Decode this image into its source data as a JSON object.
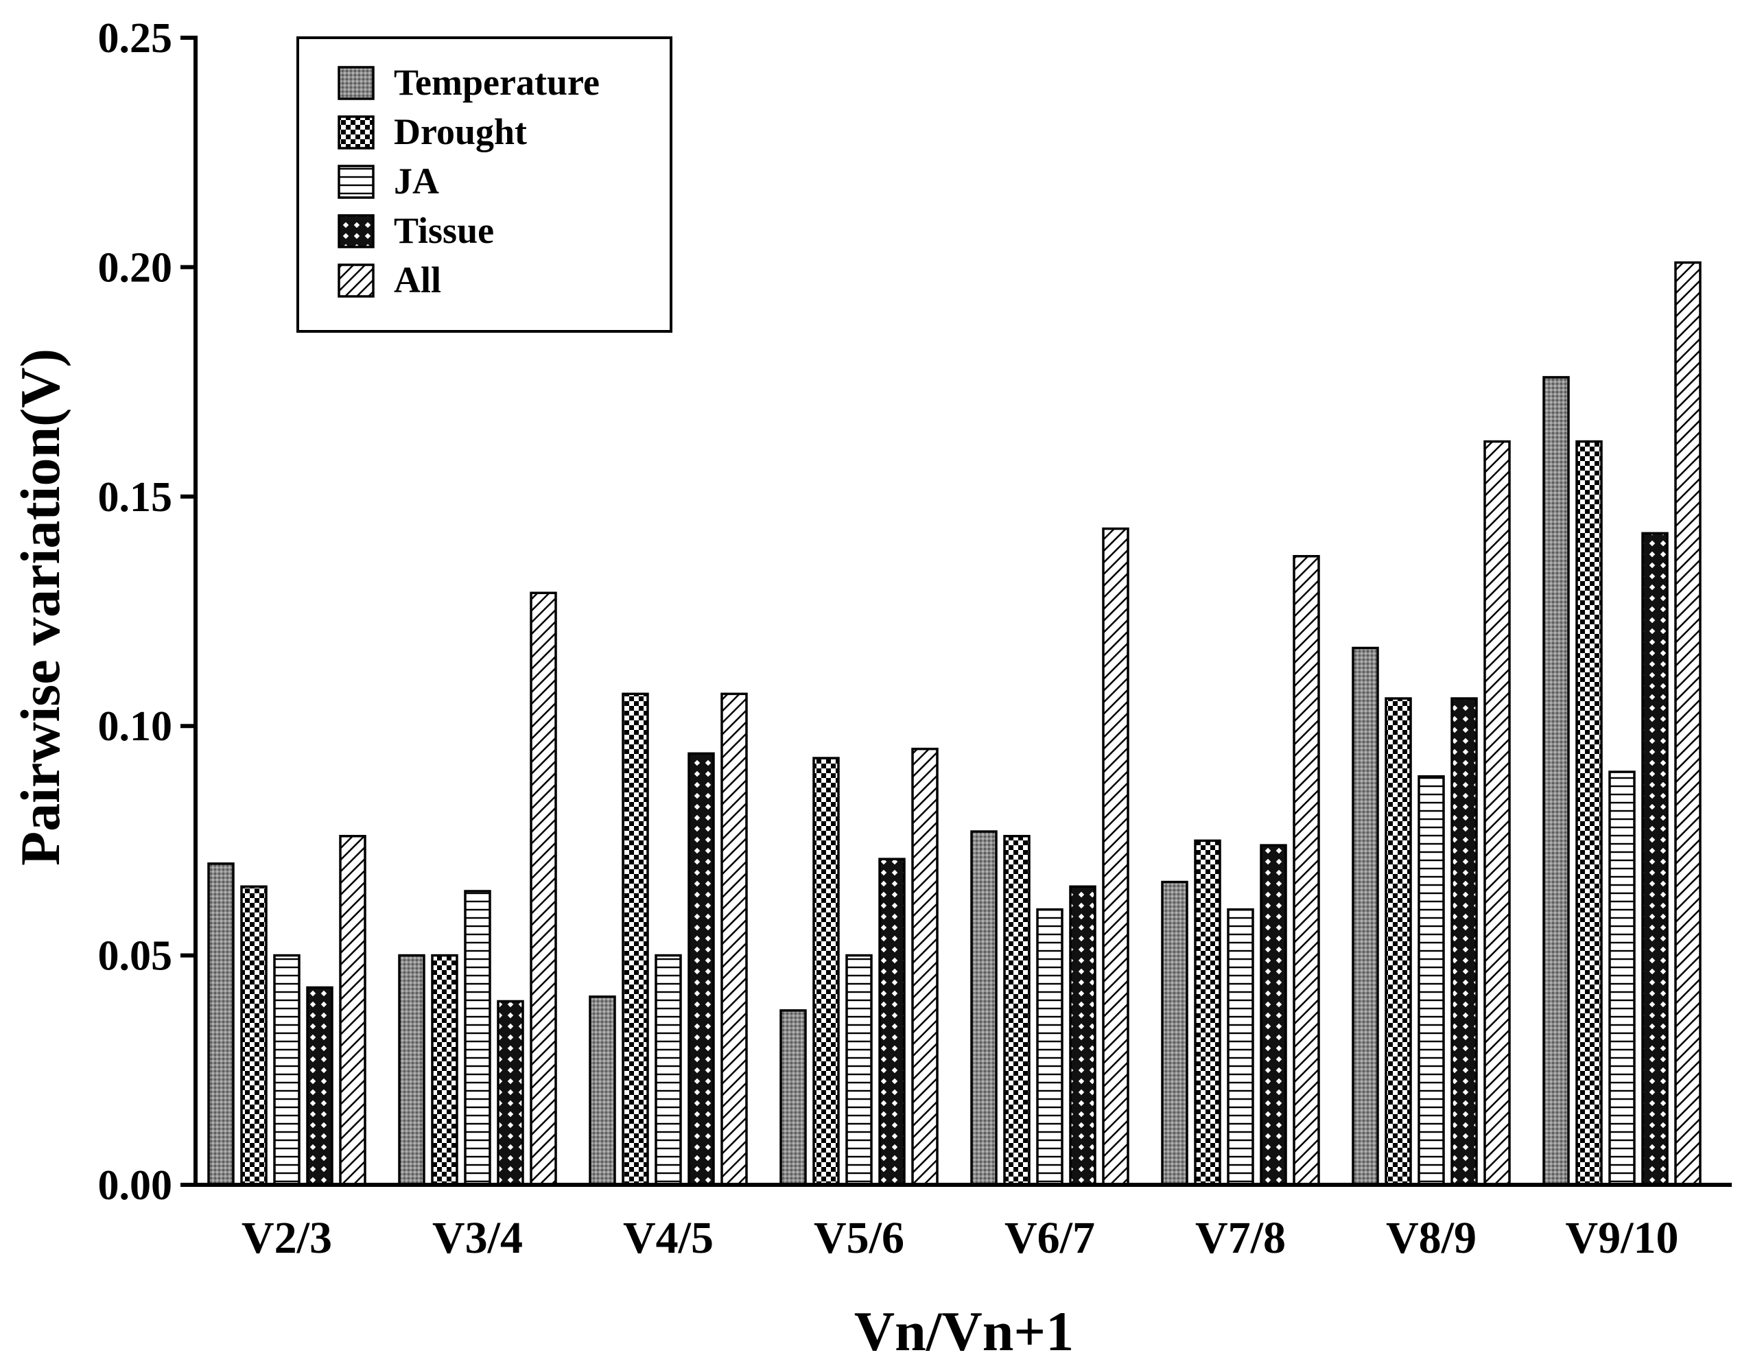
{
  "chart_data": {
    "type": "bar",
    "title": "",
    "xlabel": "Vn/Vn+1",
    "ylabel": "Pairwise variation(V)",
    "ylim": [
      0,
      0.25
    ],
    "yticks": [
      "0.00",
      "0.05",
      "0.10",
      "0.15",
      "0.20",
      "0.25"
    ],
    "ytick_values": [
      0,
      0.05,
      0.1,
      0.15,
      0.2,
      0.25
    ],
    "grid": false,
    "legend_position": "top-left",
    "categories": [
      "V2/3",
      "V3/4",
      "V4/5",
      "V5/6",
      "V6/7",
      "V7/8",
      "V8/9",
      "V9/10"
    ],
    "series": [
      {
        "name": "Temperature",
        "pattern": "dense-grey",
        "values": [
          0.07,
          0.05,
          0.041,
          0.038,
          0.077,
          0.066,
          0.117,
          0.176
        ]
      },
      {
        "name": "Drought",
        "pattern": "checker",
        "values": [
          0.065,
          0.05,
          0.107,
          0.093,
          0.076,
          0.075,
          0.106,
          0.162
        ]
      },
      {
        "name": "JA",
        "pattern": "horizontal-lines",
        "values": [
          0.05,
          0.064,
          0.05,
          0.05,
          0.06,
          0.06,
          0.089,
          0.09
        ]
      },
      {
        "name": "Tissue",
        "pattern": "cross-hatch",
        "values": [
          0.043,
          0.04,
          0.094,
          0.071,
          0.065,
          0.074,
          0.106,
          0.142
        ]
      },
      {
        "name": "All",
        "pattern": "diagonal-lines",
        "values": [
          0.076,
          0.129,
          0.107,
          0.095,
          0.143,
          0.137,
          0.162,
          0.201
        ]
      }
    ]
  }
}
